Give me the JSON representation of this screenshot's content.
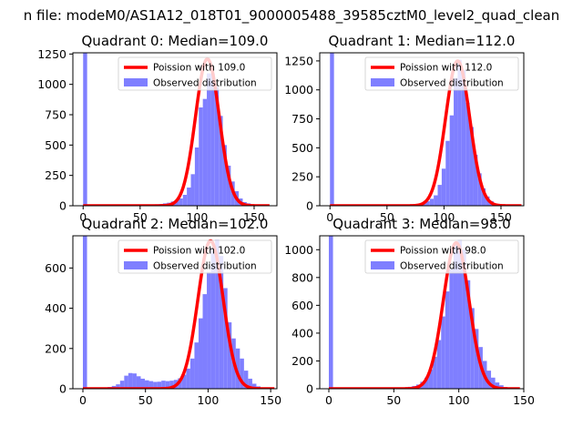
{
  "figure": {
    "suptitle": "n file: modeM0/AS1A12_018T01_9000005488_39585cztM0_level2_quad_clean"
  },
  "colors": {
    "poisson": "#ff0000",
    "observed": "#7f7fff",
    "axis": "#000000",
    "background": "#ffffff"
  },
  "chart_data": [
    {
      "type": "histogram",
      "title": "Quadrant 0: Median=109.0",
      "xlim": [
        -9,
        170
      ],
      "ylim": [
        0,
        1260
      ],
      "xticks": [
        0,
        50,
        100,
        150
      ],
      "yticks": [
        0,
        250,
        500,
        750,
        1000,
        1250
      ],
      "legend": {
        "placement": "top-right",
        "entries": [
          "Poission with 109.0",
          "Observed distribution"
        ]
      },
      "poisson_mean": 109.0,
      "poisson_scale": 1210,
      "zero_bin": 1260,
      "bin_width": 3.5,
      "bins": [
        [
          3.5,
          3
        ],
        [
          7,
          3
        ],
        [
          10.5,
          3
        ],
        [
          14,
          3
        ],
        [
          17.5,
          3
        ],
        [
          21,
          3
        ],
        [
          24.5,
          3
        ],
        [
          28,
          3
        ],
        [
          31.5,
          3
        ],
        [
          35,
          3
        ],
        [
          38.5,
          4
        ],
        [
          42,
          4
        ],
        [
          45.5,
          4
        ],
        [
          49,
          5
        ],
        [
          52.5,
          6
        ],
        [
          56,
          8
        ],
        [
          59.5,
          10
        ],
        [
          63,
          12
        ],
        [
          66.5,
          14
        ],
        [
          70,
          20
        ],
        [
          73.5,
          25
        ],
        [
          77,
          35
        ],
        [
          80.5,
          45
        ],
        [
          84,
          60
        ],
        [
          87.5,
          90
        ],
        [
          91,
          150
        ],
        [
          94.5,
          260
        ],
        [
          98,
          480
        ],
        [
          101.5,
          810
        ],
        [
          105,
          880
        ],
        [
          108.5,
          1090
        ],
        [
          112,
          1090
        ],
        [
          115.5,
          980
        ],
        [
          119,
          740
        ],
        [
          122.5,
          500
        ],
        [
          126,
          330
        ],
        [
          129.5,
          200
        ],
        [
          133,
          120
        ],
        [
          136.5,
          60
        ],
        [
          140,
          30
        ],
        [
          143.5,
          20
        ],
        [
          147,
          10
        ],
        [
          150.5,
          6
        ],
        [
          154,
          3
        ],
        [
          157.5,
          2
        ]
      ]
    },
    {
      "type": "histogram",
      "title": "Quadrant 1: Median=112.0",
      "xlim": [
        -9,
        170
      ],
      "ylim": [
        0,
        1320
      ],
      "xticks": [
        0,
        50,
        100,
        150
      ],
      "yticks": [
        0,
        250,
        500,
        750,
        1000,
        1250
      ],
      "legend": {
        "placement": "top-right",
        "entries": [
          "Poission with 112.0",
          "Observed distribution"
        ]
      },
      "poisson_mean": 112.0,
      "poisson_scale": 1250,
      "zero_bin": 1320,
      "bin_width": 3.5,
      "bins": [
        [
          3.5,
          3
        ],
        [
          7,
          3
        ],
        [
          10.5,
          3
        ],
        [
          14,
          3
        ],
        [
          17.5,
          3
        ],
        [
          21,
          3
        ],
        [
          24.5,
          3
        ],
        [
          28,
          3
        ],
        [
          31.5,
          3
        ],
        [
          35,
          3
        ],
        [
          38.5,
          3
        ],
        [
          42,
          3
        ],
        [
          45.5,
          4
        ],
        [
          49,
          4
        ],
        [
          52.5,
          5
        ],
        [
          56,
          6
        ],
        [
          59.5,
          7
        ],
        [
          63,
          8
        ],
        [
          66.5,
          10
        ],
        [
          70,
          12
        ],
        [
          73.5,
          15
        ],
        [
          77,
          20
        ],
        [
          80.5,
          28
        ],
        [
          84,
          40
        ],
        [
          87.5,
          60
        ],
        [
          91,
          90
        ],
        [
          94.5,
          180
        ],
        [
          98,
          320
        ],
        [
          101.5,
          560
        ],
        [
          105,
          780
        ],
        [
          108.5,
          1100
        ],
        [
          112,
          1260
        ],
        [
          115.5,
          1170
        ],
        [
          119,
          890
        ],
        [
          122.5,
          680
        ],
        [
          126,
          440
        ],
        [
          129.5,
          280
        ],
        [
          133,
          150
        ],
        [
          136.5,
          80
        ],
        [
          140,
          40
        ],
        [
          143.5,
          20
        ],
        [
          147,
          10
        ],
        [
          150.5,
          6
        ],
        [
          154,
          3
        ],
        [
          157.5,
          2
        ]
      ]
    },
    {
      "type": "histogram",
      "title": "Quadrant 2: Median=102.0",
      "xlim": [
        -8,
        155
      ],
      "ylim": [
        0,
        760
      ],
      "xticks": [
        0,
        50,
        100,
        150
      ],
      "yticks": [
        0,
        200,
        400,
        600
      ],
      "legend": {
        "placement": "top-right",
        "entries": [
          "Poission with 102.0",
          "Observed distribution"
        ]
      },
      "poisson_mean": 102.0,
      "poisson_scale": 735,
      "zero_bin": 760,
      "bin_width": 3.3,
      "bins": [
        [
          3.3,
          2
        ],
        [
          6.6,
          2
        ],
        [
          9.9,
          3
        ],
        [
          13.2,
          4
        ],
        [
          16.5,
          6
        ],
        [
          19.8,
          9
        ],
        [
          23.1,
          14
        ],
        [
          26.4,
          22
        ],
        [
          29.7,
          40
        ],
        [
          33,
          65
        ],
        [
          36.3,
          78
        ],
        [
          39.6,
          76
        ],
        [
          42.9,
          62
        ],
        [
          46.2,
          50
        ],
        [
          49.5,
          42
        ],
        [
          52.8,
          38
        ],
        [
          56.1,
          34
        ],
        [
          59.4,
          35
        ],
        [
          62.7,
          40
        ],
        [
          66,
          38
        ],
        [
          69.3,
          40
        ],
        [
          72.6,
          44
        ],
        [
          75.9,
          52
        ],
        [
          79.2,
          70
        ],
        [
          82.5,
          100
        ],
        [
          85.8,
          150
        ],
        [
          89.1,
          230
        ],
        [
          92.4,
          350
        ],
        [
          95.7,
          470
        ],
        [
          99,
          580
        ],
        [
          102.3,
          700
        ],
        [
          105.6,
          740
        ],
        [
          108.9,
          660
        ],
        [
          112.2,
          500
        ],
        [
          115.5,
          330
        ],
        [
          118.8,
          250
        ],
        [
          122.1,
          200
        ],
        [
          125.4,
          150
        ],
        [
          128.7,
          90
        ],
        [
          132,
          50
        ],
        [
          135.3,
          25
        ],
        [
          138.6,
          12
        ],
        [
          141.9,
          6
        ],
        [
          145.2,
          3
        ]
      ]
    },
    {
      "type": "histogram",
      "title": "Quadrant 3: Median=98.0",
      "xlim": [
        -7,
        150
      ],
      "ylim": [
        0,
        1100
      ],
      "xticks": [
        0,
        50,
        100,
        150
      ],
      "yticks": [
        0,
        200,
        400,
        600,
        800,
        1000
      ],
      "legend": {
        "placement": "top-right",
        "entries": [
          "Poission with 98.0",
          "Observed distribution"
        ]
      },
      "poisson_mean": 98.0,
      "poisson_scale": 1050,
      "zero_bin": 1100,
      "bin_width": 3.2,
      "bins": [
        [
          3.2,
          2
        ],
        [
          6.4,
          2
        ],
        [
          9.6,
          2
        ],
        [
          12.8,
          2
        ],
        [
          16,
          2
        ],
        [
          19.2,
          2
        ],
        [
          22.4,
          2
        ],
        [
          25.6,
          2
        ],
        [
          28.8,
          2
        ],
        [
          32,
          2
        ],
        [
          35.2,
          3
        ],
        [
          38.4,
          3
        ],
        [
          41.6,
          3
        ],
        [
          44.8,
          4
        ],
        [
          48,
          5
        ],
        [
          51.2,
          6
        ],
        [
          54.4,
          8
        ],
        [
          57.6,
          10
        ],
        [
          60.8,
          14
        ],
        [
          64,
          20
        ],
        [
          67.2,
          30
        ],
        [
          70.4,
          50
        ],
        [
          73.6,
          80
        ],
        [
          76.8,
          140
        ],
        [
          80,
          230
        ],
        [
          83.2,
          350
        ],
        [
          86.4,
          520
        ],
        [
          89.6,
          700
        ],
        [
          92.8,
          860
        ],
        [
          96,
          1050
        ],
        [
          99.2,
          1070
        ],
        [
          102.4,
          1000
        ],
        [
          105.6,
          780
        ],
        [
          108.8,
          580
        ],
        [
          112,
          430
        ],
        [
          115.2,
          300
        ],
        [
          118.4,
          200
        ],
        [
          121.6,
          130
        ],
        [
          124.8,
          80
        ],
        [
          128,
          45
        ],
        [
          131.2,
          25
        ],
        [
          134.4,
          12
        ],
        [
          137.6,
          6
        ],
        [
          140.8,
          3
        ]
      ]
    }
  ]
}
